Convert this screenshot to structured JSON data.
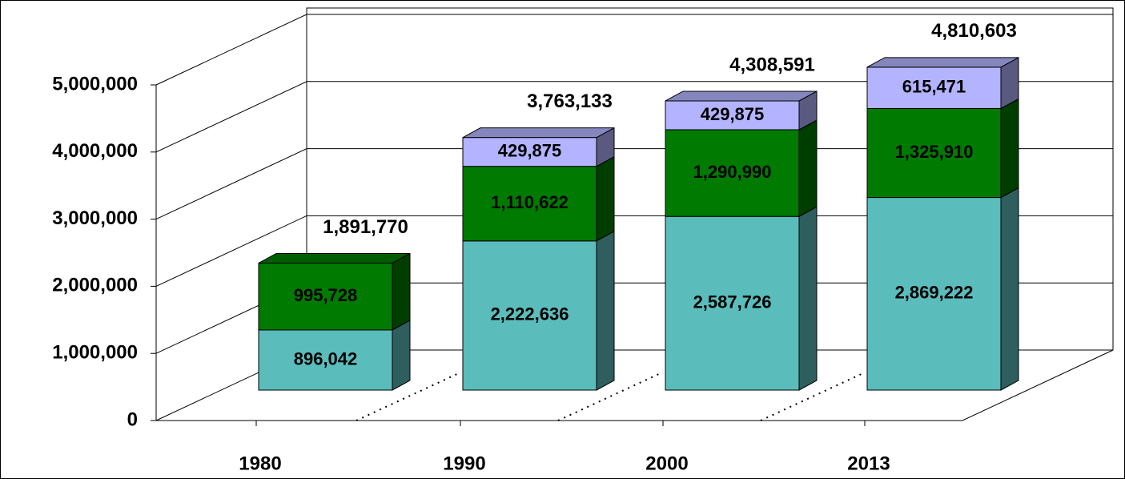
{
  "chart_data": {
    "type": "bar3d_stacked",
    "categories": [
      "1980",
      "1990",
      "2000",
      "2013"
    ],
    "series": [
      {
        "color": "#5bbcbc",
        "values": [
          896042,
          2222636,
          2587726,
          2869222
        ],
        "value_labels": [
          "896,042",
          "2,222,636",
          "2,587,726",
          "2,869,222"
        ]
      },
      {
        "color": "#007a00",
        "values": [
          995728,
          1110622,
          1290990,
          1325910
        ],
        "value_labels": [
          "995,728",
          "1,110,622",
          "1,290,990",
          "1,325,910"
        ]
      },
      {
        "color": "#b3b3ff",
        "values": [
          null,
          429875,
          429875,
          615471
        ],
        "value_labels": [
          null,
          "429,875",
          "429,875",
          "615,471"
        ]
      }
    ],
    "totals": {
      "values": [
        1891770,
        3763133,
        4308591,
        4810603
      ],
      "value_labels": [
        "1,891,770",
        "3,763,133",
        "4,308,591",
        "4,810,603"
      ]
    },
    "ylim": [
      0,
      5000000
    ],
    "yticks": [
      {
        "value": 0,
        "label": "0"
      },
      {
        "value": 1000000,
        "label": "1,000,000"
      },
      {
        "value": 2000000,
        "label": "2,000,000"
      },
      {
        "value": 3000000,
        "label": "3,000,000"
      },
      {
        "value": 4000000,
        "label": "4,000,000"
      },
      {
        "value": 5000000,
        "label": "5,000,000"
      }
    ],
    "grid": true
  }
}
